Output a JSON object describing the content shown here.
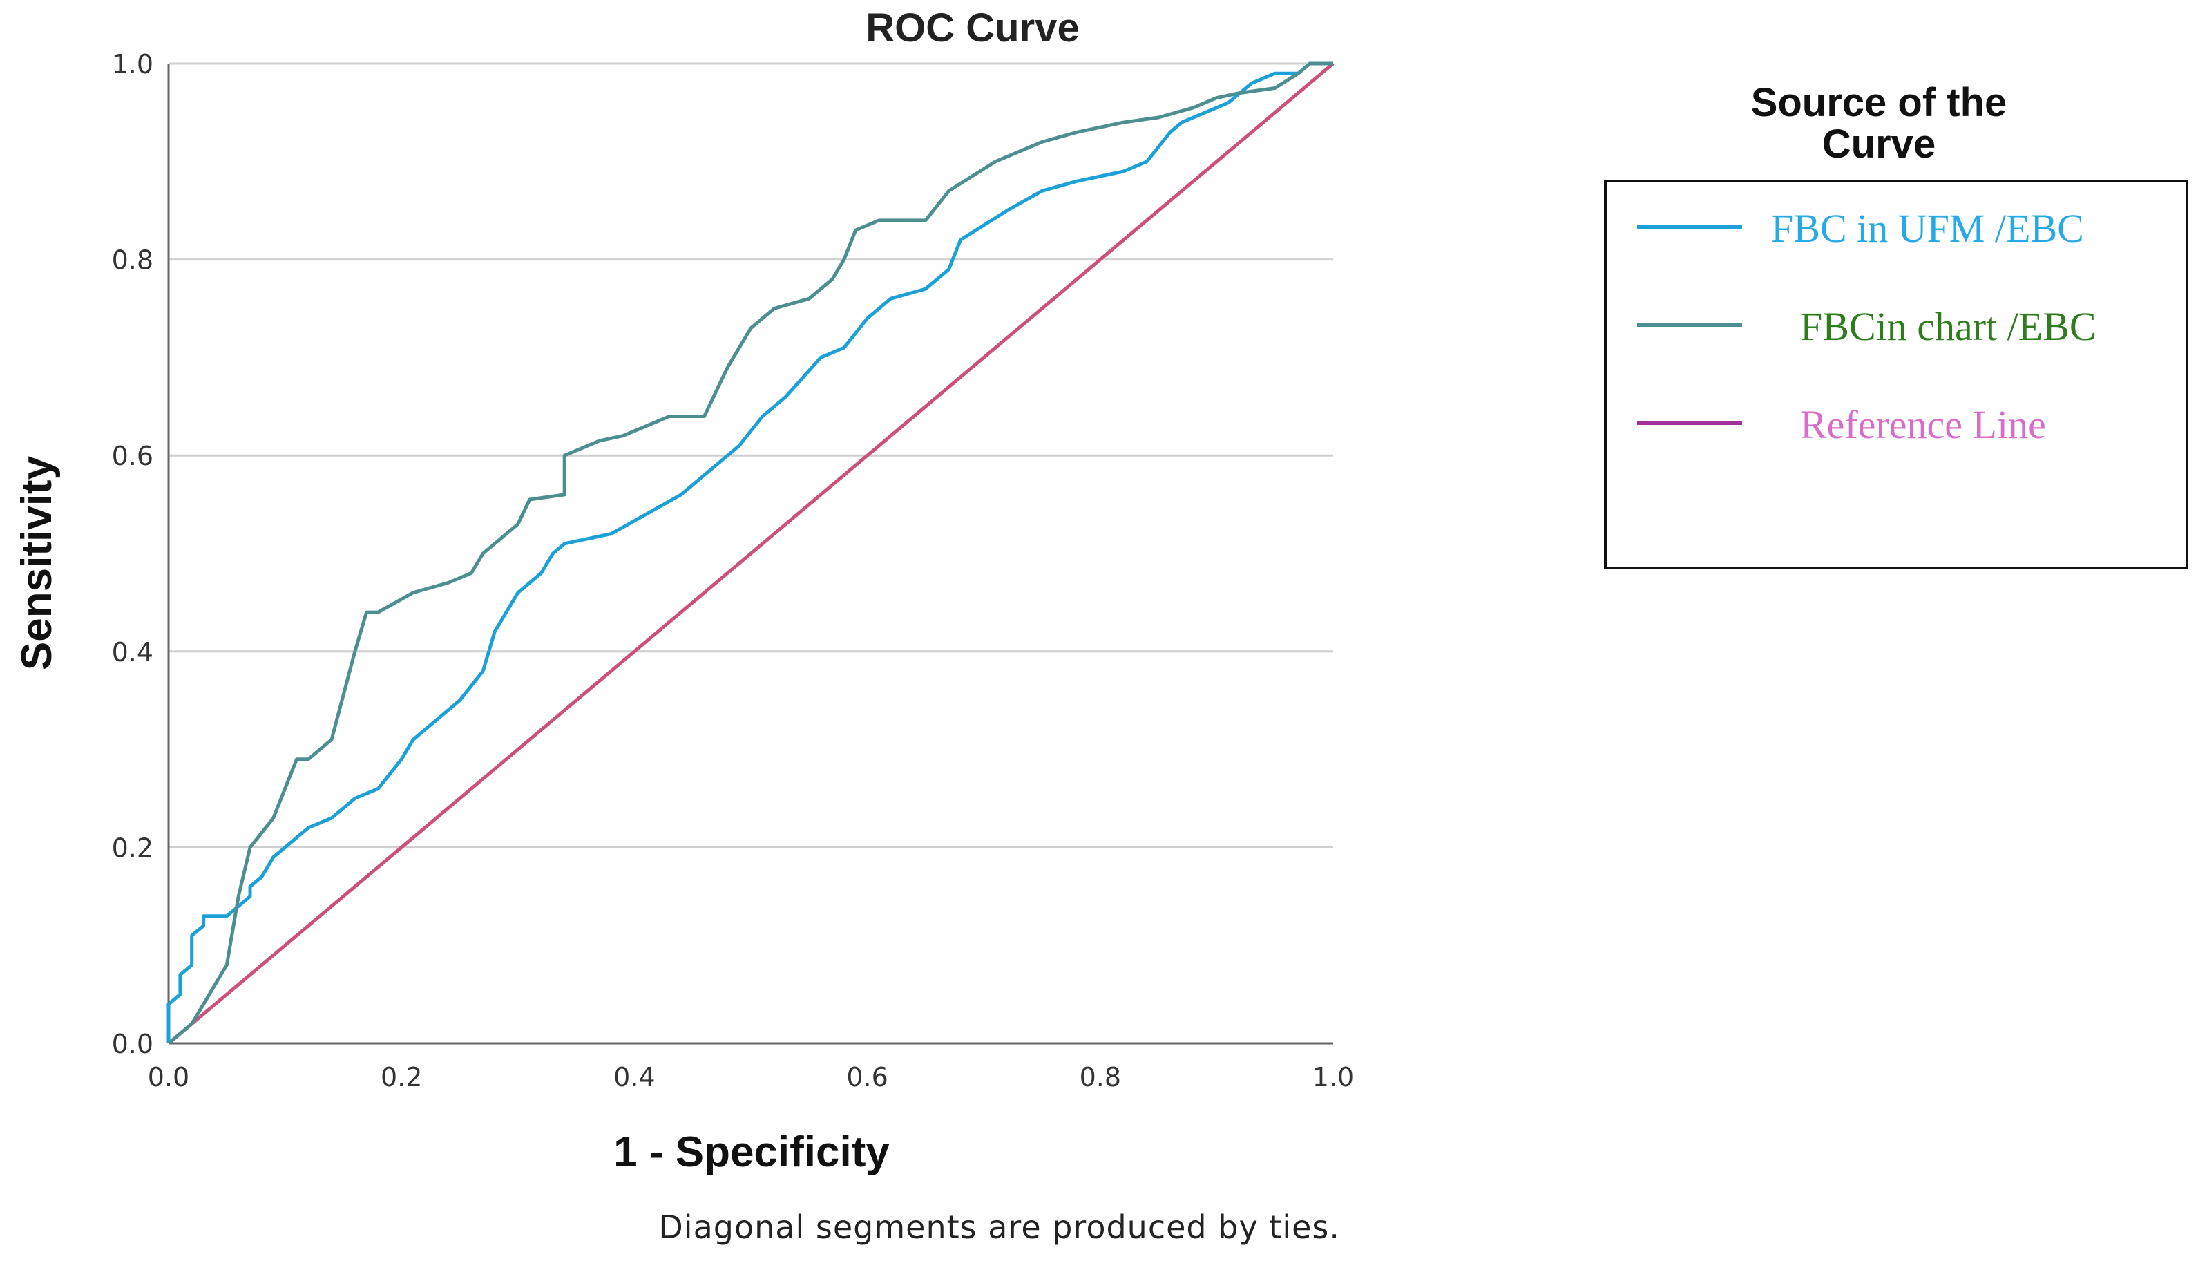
{
  "chart_data": {
    "type": "line",
    "title": "ROC Curve",
    "xlabel": "1 - Specificity",
    "ylabel": "Sensitivity",
    "xlim": [
      0,
      1
    ],
    "ylim": [
      0,
      1
    ],
    "xticks": [
      "0.0",
      "0.2",
      "0.4",
      "0.6",
      "0.8",
      "1.0"
    ],
    "yticks": [
      "0.0",
      "0.2",
      "0.4",
      "0.6",
      "0.8",
      "1.0"
    ],
    "grid": "horizontal",
    "footnote": "Diagonal segments are produced by ties.",
    "legend": {
      "title_line1": "Source of the",
      "title_line2": "Curve",
      "placement": "right"
    },
    "series": [
      {
        "name": "FBC in UFM /EBC",
        "line_color": "#1ba1d8",
        "text_color": "#27a9e6",
        "x": [
          0,
          0,
          0.01,
          0.01,
          0.02,
          0.02,
          0.03,
          0.03,
          0.05,
          0.06,
          0.07,
          0.07,
          0.08,
          0.09,
          0.1,
          0.12,
          0.14,
          0.16,
          0.18,
          0.2,
          0.21,
          0.23,
          0.25,
          0.27,
          0.28,
          0.3,
          0.32,
          0.33,
          0.34,
          0.38,
          0.41,
          0.44,
          0.46,
          0.48,
          0.49,
          0.51,
          0.53,
          0.56,
          0.58,
          0.6,
          0.62,
          0.65,
          0.67,
          0.68,
          0.72,
          0.75,
          0.78,
          0.82,
          0.84,
          0.86,
          0.87,
          0.89,
          0.91,
          0.93,
          0.95,
          0.97,
          0.98,
          1.0
        ],
        "y": [
          0,
          0.04,
          0.05,
          0.07,
          0.08,
          0.11,
          0.12,
          0.13,
          0.13,
          0.14,
          0.15,
          0.16,
          0.17,
          0.19,
          0.2,
          0.22,
          0.23,
          0.25,
          0.26,
          0.29,
          0.31,
          0.33,
          0.35,
          0.38,
          0.42,
          0.46,
          0.48,
          0.5,
          0.51,
          0.52,
          0.54,
          0.56,
          0.58,
          0.6,
          0.61,
          0.64,
          0.66,
          0.7,
          0.71,
          0.74,
          0.76,
          0.77,
          0.79,
          0.82,
          0.85,
          0.87,
          0.88,
          0.89,
          0.9,
          0.93,
          0.94,
          0.95,
          0.96,
          0.98,
          0.99,
          0.99,
          1.0,
          1.0
        ]
      },
      {
        "name": "FBCin chart /EBC",
        "line_color": "#4d8f90",
        "text_color": "#2e7d1c",
        "x": [
          0,
          0.01,
          0.02,
          0.03,
          0.04,
          0.05,
          0.06,
          0.07,
          0.09,
          0.1,
          0.11,
          0.12,
          0.14,
          0.16,
          0.17,
          0.18,
          0.21,
          0.24,
          0.26,
          0.27,
          0.3,
          0.31,
          0.34,
          0.34,
          0.37,
          0.39,
          0.41,
          0.43,
          0.46,
          0.48,
          0.5,
          0.52,
          0.55,
          0.57,
          0.58,
          0.59,
          0.61,
          0.65,
          0.67,
          0.71,
          0.75,
          0.78,
          0.82,
          0.85,
          0.88,
          0.9,
          0.92,
          0.95,
          0.97,
          0.98,
          1.0
        ],
        "y": [
          0,
          0.01,
          0.02,
          0.04,
          0.06,
          0.08,
          0.15,
          0.2,
          0.23,
          0.26,
          0.29,
          0.29,
          0.31,
          0.4,
          0.44,
          0.44,
          0.46,
          0.47,
          0.48,
          0.5,
          0.53,
          0.555,
          0.56,
          0.6,
          0.615,
          0.62,
          0.63,
          0.64,
          0.64,
          0.69,
          0.73,
          0.75,
          0.76,
          0.78,
          0.8,
          0.83,
          0.84,
          0.84,
          0.87,
          0.9,
          0.92,
          0.93,
          0.94,
          0.945,
          0.955,
          0.965,
          0.97,
          0.975,
          0.99,
          1.0,
          1.0
        ]
      },
      {
        "name": "Reference Line",
        "line_color": "#cc4f7e",
        "text_color": "#d96cc9",
        "legend_line_color": "#a0309a",
        "x": [
          0,
          1
        ],
        "y": [
          0,
          1
        ]
      }
    ]
  }
}
